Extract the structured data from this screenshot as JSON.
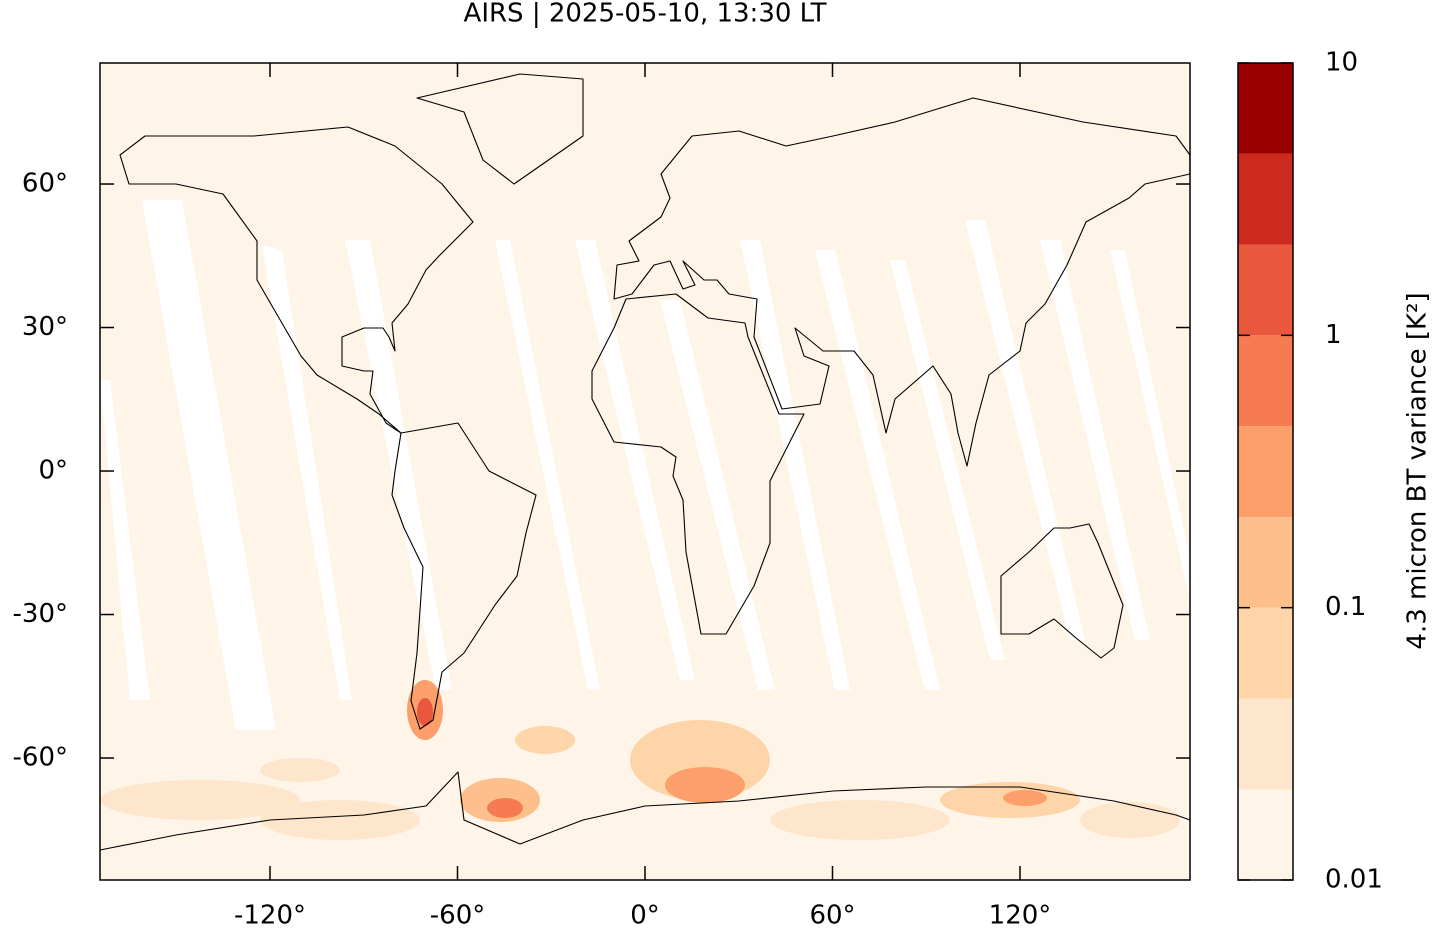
{
  "chart_data": {
    "type": "map",
    "title": "AIRS | 2025-05-10, 13:30 LT",
    "xlim": [
      -174.4,
      174.4
    ],
    "ylim": [
      -85.5,
      85.3
    ],
    "xticks": [
      {
        "value": -120,
        "label": "-120°"
      },
      {
        "value": -60,
        "label": "-60°"
      },
      {
        "value": 0,
        "label": "0°"
      },
      {
        "value": 60,
        "label": "60°"
      },
      {
        "value": 120,
        "label": "120°"
      }
    ],
    "yticks": [
      {
        "value": -60,
        "label": "-60°"
      },
      {
        "value": -30,
        "label": "-30°"
      },
      {
        "value": 0,
        "label": "0°"
      },
      {
        "value": 30,
        "label": "30°"
      },
      {
        "value": 60,
        "label": "60°"
      }
    ],
    "colorbar": {
      "label": "4.3 micron BT variance [K²]",
      "scale": "log",
      "lim": [
        0.01,
        10
      ],
      "ticks": [
        0.01,
        0.1,
        1,
        10
      ],
      "levels": [
        0.01,
        0.0215,
        0.0464,
        0.1,
        0.215,
        0.464,
        1,
        2.15,
        4.64,
        10
      ],
      "colors": [
        "#fef4e8",
        "#fde6cc",
        "#fdd5a8",
        "#fdc08c",
        "#fc9f6a",
        "#f77b52",
        "#e9573d",
        "#cc2a1e",
        "#9b0000"
      ]
    }
  }
}
